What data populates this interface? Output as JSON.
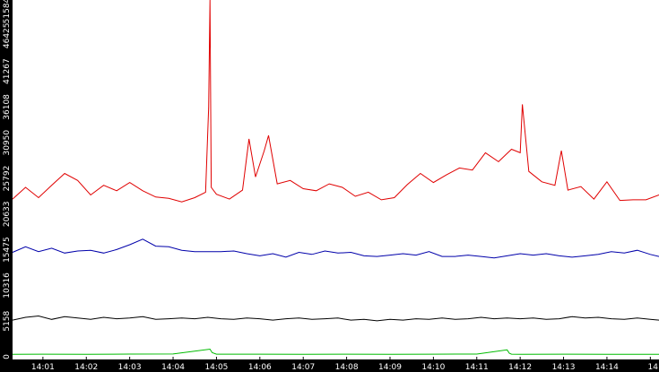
{
  "chart_data": {
    "type": "line",
    "grid": false,
    "legend": "none",
    "ylim": [
      0,
      51584
    ],
    "y_ticks": [
      "0",
      "5158",
      "10316",
      "15475",
      "20633",
      "25792",
      "30950",
      "36108",
      "41267",
      "46425",
      "51584"
    ],
    "x_ticks": [
      "14:01",
      "14:02",
      "14:03",
      "14:04",
      "14:05",
      "14:06",
      "14:07",
      "14:08",
      "14:09",
      "14:10",
      "14:11",
      "14:12",
      "14:13",
      "14:14",
      "14"
    ],
    "x_tick_values": [
      1,
      2,
      3,
      4,
      5,
      6,
      7,
      8,
      9,
      10,
      11,
      12,
      13,
      14,
      15
    ],
    "x_range_minutes": [
      0.3,
      15.2
    ],
    "series": [
      {
        "color": "#e00000",
        "x": [
          0.3,
          0.6,
          0.9,
          1.2,
          1.5,
          1.8,
          2.1,
          2.4,
          2.7,
          3.0,
          3.3,
          3.6,
          3.9,
          4.2,
          4.5,
          4.75,
          4.82,
          4.85,
          4.88,
          5.0,
          5.3,
          5.6,
          5.75,
          5.9,
          6.1,
          6.2,
          6.4,
          6.7,
          7.0,
          7.3,
          7.6,
          7.9,
          8.2,
          8.5,
          8.8,
          9.1,
          9.4,
          9.7,
          10.0,
          10.3,
          10.6,
          10.9,
          11.2,
          11.5,
          11.8,
          12.0,
          12.05,
          12.2,
          12.5,
          12.8,
          12.95,
          13.1,
          13.4,
          13.7,
          14.0,
          14.3,
          14.6,
          14.9,
          15.2
        ],
        "values": [
          22800,
          24500,
          23000,
          24800,
          26500,
          25500,
          23400,
          24800,
          24000,
          25200,
          24000,
          23100,
          22900,
          22400,
          23000,
          23800,
          36000,
          51584,
          24500,
          23500,
          22800,
          24100,
          31500,
          26000,
          29800,
          32000,
          25000,
          25500,
          24300,
          24000,
          25000,
          24500,
          23200,
          23800,
          22700,
          23000,
          24900,
          26500,
          25200,
          26300,
          27300,
          27000,
          29500,
          28200,
          30000,
          29500,
          36500,
          26800,
          25300,
          24800,
          29800,
          24100,
          24600,
          22800,
          25300,
          22600,
          22700,
          22700,
          23400
        ]
      },
      {
        "color": "#0000aa",
        "x": [
          0.3,
          0.6,
          0.9,
          1.2,
          1.5,
          1.8,
          2.1,
          2.4,
          2.7,
          3.0,
          3.3,
          3.6,
          3.9,
          4.2,
          4.5,
          4.8,
          5.1,
          5.4,
          5.7,
          6.0,
          6.3,
          6.6,
          6.9,
          7.2,
          7.5,
          7.8,
          8.1,
          8.4,
          8.7,
          9.0,
          9.3,
          9.6,
          9.9,
          10.2,
          10.5,
          10.8,
          11.1,
          11.4,
          11.7,
          12.0,
          12.3,
          12.6,
          12.9,
          13.2,
          13.5,
          13.8,
          14.1,
          14.4,
          14.7,
          15.0,
          15.2
        ],
        "values": [
          15100,
          15900,
          15200,
          15700,
          15000,
          15300,
          15400,
          15000,
          15500,
          16200,
          17000,
          16000,
          15900,
          15400,
          15200,
          15200,
          15200,
          15300,
          14900,
          14600,
          14900,
          14400,
          15100,
          14800,
          15300,
          15000,
          15100,
          14600,
          14500,
          14700,
          14900,
          14700,
          15200,
          14500,
          14500,
          14700,
          14500,
          14300,
          14600,
          14900,
          14700,
          14900,
          14600,
          14400,
          14600,
          14800,
          15200,
          15000,
          15400,
          14800,
          14500
        ]
      },
      {
        "color": "#000000",
        "x": [
          0.3,
          0.6,
          0.9,
          1.2,
          1.5,
          1.8,
          2.1,
          2.4,
          2.7,
          3.0,
          3.3,
          3.6,
          3.9,
          4.2,
          4.5,
          4.8,
          5.1,
          5.4,
          5.7,
          6.0,
          6.3,
          6.6,
          6.9,
          7.2,
          7.5,
          7.8,
          8.1,
          8.4,
          8.7,
          9.0,
          9.3,
          9.6,
          9.9,
          10.2,
          10.5,
          10.8,
          11.1,
          11.4,
          11.7,
          12.0,
          12.3,
          12.6,
          12.9,
          13.2,
          13.5,
          13.8,
          14.1,
          14.4,
          14.7,
          15.0,
          15.2
        ],
        "values": [
          5300,
          5700,
          5900,
          5400,
          5800,
          5600,
          5400,
          5700,
          5500,
          5600,
          5800,
          5400,
          5500,
          5600,
          5500,
          5700,
          5500,
          5400,
          5600,
          5500,
          5300,
          5500,
          5600,
          5400,
          5500,
          5600,
          5300,
          5400,
          5200,
          5400,
          5300,
          5500,
          5400,
          5600,
          5400,
          5500,
          5700,
          5500,
          5600,
          5500,
          5600,
          5400,
          5500,
          5800,
          5600,
          5700,
          5500,
          5400,
          5600,
          5400,
          5300
        ]
      },
      {
        "color": "#00bb00",
        "x": [
          0.3,
          1.0,
          2.0,
          3.0,
          4.0,
          4.85,
          4.9,
          5.0,
          6.0,
          7.0,
          8.0,
          9.0,
          10.0,
          11.0,
          11.7,
          11.75,
          11.8,
          12.0,
          13.0,
          14.0,
          15.2
        ],
        "values": [
          350,
          380,
          360,
          390,
          400,
          1100,
          600,
          380,
          370,
          360,
          380,
          350,
          370,
          390,
          1000,
          500,
          380,
          360,
          380,
          350,
          360
        ]
      }
    ]
  }
}
